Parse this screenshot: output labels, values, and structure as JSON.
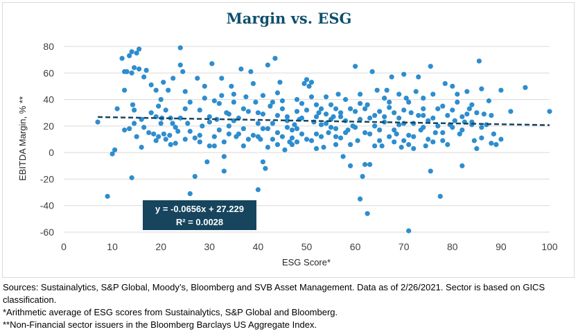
{
  "colors": {
    "title": "#0f4f6b",
    "points": "#2e8dce",
    "trendline": "#16455d",
    "equation_box": "#16455d",
    "grid": "#d9d9d9"
  },
  "notes": {
    "sources": "Sources: Sustainalytics, S&P Global, Moody’s, Bloomberg and SVB Asset Management. Data as of 2/26/2021. Sector is based on GICS classification.",
    "footnote_1": "*Arithmetic average of ESG scores from Sustainalytics, S&P Global and Bloomberg.",
    "footnote_2": "**Non-Financial sector issuers in the Bloomberg Barclays US Aggregate Index."
  },
  "chart_data": {
    "type": "scatter",
    "title": "Margin vs. ESG",
    "xlabel": "ESG Score*",
    "ylabel": "EBITDA Margin, % **",
    "xlim": [
      0,
      100
    ],
    "ylim": [
      -60,
      80
    ],
    "x_ticks": [
      0,
      10,
      20,
      30,
      40,
      50,
      60,
      70,
      80,
      90,
      100
    ],
    "y_ticks": [
      -60,
      -40,
      -20,
      0,
      20,
      40,
      60,
      80
    ],
    "grid": "horizontal",
    "trendline": {
      "type": "linear",
      "slope": -0.0656,
      "intercept": 27.229,
      "x_range": [
        7,
        100
      ],
      "equation": "y = -0.0656x + 27.229",
      "r_squared": "R² = 0.0028"
    },
    "points": [
      [
        7,
        23
      ],
      [
        9,
        -33
      ],
      [
        10,
        -1
      ],
      [
        10.5,
        2
      ],
      [
        11,
        33
      ],
      [
        12,
        71
      ],
      [
        12.5,
        61
      ],
      [
        13,
        61
      ],
      [
        13.5,
        73
      ],
      [
        14,
        76
      ],
      [
        14.5,
        64
      ],
      [
        15,
        75
      ],
      [
        14,
        60
      ],
      [
        14.2,
        36
      ],
      [
        14.5,
        32
      ],
      [
        15.5,
        78
      ],
      [
        14,
        -19
      ],
      [
        12.5,
        47
      ],
      [
        12.5,
        17
      ],
      [
        13.5,
        18
      ],
      [
        14.5,
        22
      ],
      [
        15,
        12
      ],
      [
        15.5,
        63
      ],
      [
        16,
        4
      ],
      [
        16.5,
        19
      ],
      [
        16.5,
        57
      ],
      [
        17,
        62
      ],
      [
        17.5,
        15
      ],
      [
        18,
        51
      ],
      [
        18.5,
        14
      ],
      [
        19,
        47
      ],
      [
        19.5,
        35
      ],
      [
        20,
        22
      ],
      [
        20.5,
        53
      ],
      [
        21,
        32
      ],
      [
        21.5,
        47
      ],
      [
        22,
        26
      ],
      [
        22.5,
        56
      ],
      [
        19,
        27
      ],
      [
        19.5,
        12
      ],
      [
        20.2,
        26
      ],
      [
        20.6,
        14
      ],
      [
        21,
        10
      ],
      [
        21.8,
        13
      ],
      [
        22.4,
        22
      ],
      [
        23,
        19
      ],
      [
        23.5,
        16
      ],
      [
        24,
        79
      ],
      [
        24,
        66
      ],
      [
        24.5,
        61
      ],
      [
        25,
        10
      ],
      [
        25,
        46
      ],
      [
        25.5,
        22
      ],
      [
        26,
        16
      ],
      [
        26,
        -31
      ],
      [
        27,
        -18
      ],
      [
        27.5,
        56
      ],
      [
        28,
        32
      ],
      [
        28,
        13
      ],
      [
        28.5,
        20
      ],
      [
        29,
        50
      ],
      [
        29.5,
        -7
      ],
      [
        30,
        23
      ],
      [
        30,
        5
      ],
      [
        30.5,
        67
      ],
      [
        31,
        39
      ],
      [
        31,
        12
      ],
      [
        31.5,
        25
      ],
      [
        32,
        37
      ],
      [
        32.5,
        43
      ],
      [
        32.5,
        56
      ],
      [
        33,
        -14
      ],
      [
        33,
        -3
      ],
      [
        33.5,
        30
      ],
      [
        34,
        20
      ],
      [
        34,
        14
      ],
      [
        34.5,
        50
      ],
      [
        35,
        38
      ],
      [
        35,
        24
      ],
      [
        35.5,
        12
      ],
      [
        36,
        26
      ],
      [
        36.5,
        63
      ],
      [
        37,
        18
      ],
      [
        37,
        33
      ],
      [
        37.5,
        42
      ],
      [
        38,
        10
      ],
      [
        38.5,
        61
      ],
      [
        39,
        52
      ],
      [
        39.5,
        38
      ],
      [
        40,
        22
      ],
      [
        40,
        -28
      ],
      [
        40.5,
        10
      ],
      [
        41,
        -7
      ],
      [
        41,
        43
      ],
      [
        41.5,
        -12
      ],
      [
        42,
        66
      ],
      [
        42,
        18
      ],
      [
        42.5,
        35
      ],
      [
        43,
        38
      ],
      [
        43.5,
        71
      ],
      [
        44,
        15
      ],
      [
        44,
        45
      ],
      [
        44.5,
        53
      ],
      [
        45,
        39
      ],
      [
        45,
        12
      ],
      [
        45.5,
        2
      ],
      [
        46,
        24
      ],
      [
        46.5,
        8
      ],
      [
        47,
        11
      ],
      [
        47.5,
        21
      ],
      [
        48,
        18
      ],
      [
        48.5,
        25
      ],
      [
        49,
        37
      ],
      [
        49.5,
        52
      ],
      [
        50,
        55
      ],
      [
        50,
        10
      ],
      [
        50.5,
        50
      ],
      [
        51,
        53
      ],
      [
        51.5,
        23
      ],
      [
        52,
        14
      ],
      [
        52.5,
        30
      ],
      [
        53,
        33
      ],
      [
        53.5,
        4
      ],
      [
        54,
        22
      ],
      [
        54.5,
        15
      ],
      [
        55,
        19
      ],
      [
        55.5,
        27
      ],
      [
        56,
        33
      ],
      [
        56.5,
        44
      ],
      [
        57,
        27
      ],
      [
        57.5,
        -3
      ],
      [
        58,
        40
      ],
      [
        58.5,
        17
      ],
      [
        59,
        -10
      ],
      [
        59.5,
        20
      ],
      [
        60,
        65
      ],
      [
        60,
        31
      ],
      [
        60.5,
        9
      ],
      [
        61,
        25
      ],
      [
        61,
        -35
      ],
      [
        61.5,
        -18
      ],
      [
        62,
        -9
      ],
      [
        62.5,
        36
      ],
      [
        62.5,
        -46
      ],
      [
        63,
        -9
      ],
      [
        63.5,
        61
      ],
      [
        64,
        28
      ],
      [
        64.5,
        47
      ],
      [
        65,
        17
      ],
      [
        65.5,
        5
      ],
      [
        66,
        23
      ],
      [
        66.5,
        47
      ],
      [
        67,
        38
      ],
      [
        67.5,
        57
      ],
      [
        68,
        30
      ],
      [
        68.5,
        14
      ],
      [
        69,
        21
      ],
      [
        69.5,
        4
      ],
      [
        70,
        59
      ],
      [
        70,
        22
      ],
      [
        70.5,
        41
      ],
      [
        71,
        13
      ],
      [
        71,
        -59
      ],
      [
        71.5,
        30
      ],
      [
        72,
        22
      ],
      [
        72.5,
        46
      ],
      [
        73,
        57
      ],
      [
        73.5,
        17
      ],
      [
        74,
        33
      ],
      [
        74.5,
        5
      ],
      [
        75,
        24
      ],
      [
        75.5,
        65
      ],
      [
        75.5,
        -14
      ],
      [
        76,
        44
      ],
      [
        76.5,
        15
      ],
      [
        77,
        33
      ],
      [
        77.5,
        -33
      ],
      [
        78,
        35
      ],
      [
        78.5,
        52
      ],
      [
        79,
        6
      ],
      [
        79.5,
        21
      ],
      [
        80,
        50
      ],
      [
        80.5,
        24
      ],
      [
        81,
        38
      ],
      [
        81.5,
        14
      ],
      [
        82,
        -10
      ],
      [
        82.5,
        23
      ],
      [
        83,
        46
      ],
      [
        83.5,
        33
      ],
      [
        84,
        21
      ],
      [
        84.5,
        9
      ],
      [
        85,
        30
      ],
      [
        85.5,
        69
      ],
      [
        86,
        48
      ],
      [
        86.5,
        29
      ],
      [
        87,
        21
      ],
      [
        87.5,
        39
      ],
      [
        88,
        28
      ],
      [
        88.5,
        14
      ],
      [
        89,
        6
      ],
      [
        90,
        47
      ],
      [
        90,
        10
      ],
      [
        92,
        31
      ],
      [
        95,
        49
      ],
      [
        100,
        31
      ],
      [
        41,
        18
      ],
      [
        43,
        22
      ],
      [
        46,
        27
      ],
      [
        48,
        31
      ],
      [
        52,
        36
      ],
      [
        54,
        29
      ],
      [
        56,
        18
      ],
      [
        58,
        24
      ],
      [
        62,
        15
      ],
      [
        64,
        20
      ],
      [
        66,
        27
      ],
      [
        68,
        8
      ],
      [
        72,
        12
      ],
      [
        74,
        19
      ],
      [
        76,
        26
      ],
      [
        78,
        9
      ],
      [
        80,
        32
      ],
      [
        82,
        17
      ],
      [
        84,
        23
      ],
      [
        86,
        11
      ],
      [
        47,
        6
      ],
      [
        49,
        14
      ],
      [
        51,
        42
      ],
      [
        53,
        21
      ],
      [
        55,
        36
      ],
      [
        57,
        11
      ],
      [
        59,
        33
      ],
      [
        61,
        44
      ],
      [
        63,
        14
      ],
      [
        65,
        31
      ],
      [
        67,
        12
      ],
      [
        69,
        44
      ],
      [
        71,
        6
      ],
      [
        73,
        28
      ],
      [
        75,
        10
      ],
      [
        77,
        20
      ],
      [
        79,
        28
      ],
      [
        81,
        44
      ],
      [
        83,
        29
      ],
      [
        85,
        3
      ],
      [
        33,
        8
      ],
      [
        35,
        44
      ],
      [
        37,
        5
      ],
      [
        39,
        13
      ],
      [
        41,
        29
      ],
      [
        43,
        10
      ],
      [
        45,
        33
      ],
      [
        47,
        17
      ],
      [
        49,
        26
      ],
      [
        51,
        9
      ],
      [
        53,
        12
      ],
      [
        55,
        25
      ],
      [
        57,
        30
      ],
      [
        59,
        6
      ],
      [
        61,
        37
      ],
      [
        63,
        26
      ],
      [
        65,
        9
      ],
      [
        67,
        34
      ],
      [
        69,
        26
      ],
      [
        71,
        38
      ],
      [
        24,
        26
      ],
      [
        26,
        38
      ],
      [
        28,
        8
      ],
      [
        30,
        27
      ],
      [
        32,
        17
      ],
      [
        34,
        29
      ],
      [
        36,
        14
      ],
      [
        38,
        31
      ],
      [
        40,
        12
      ],
      [
        42,
        4
      ],
      [
        44,
        28
      ],
      [
        46,
        19
      ],
      [
        48,
        40
      ],
      [
        50,
        32
      ],
      [
        52,
        3
      ],
      [
        54,
        42
      ],
      [
        56,
        6
      ],
      [
        58,
        15
      ],
      [
        60,
        19
      ],
      [
        62,
        33
      ],
      [
        64,
        5
      ],
      [
        66,
        41
      ],
      [
        68,
        17
      ],
      [
        70,
        32
      ],
      [
        72,
        3
      ],
      [
        74,
        41
      ],
      [
        76,
        8
      ],
      [
        78,
        15
      ],
      [
        80,
        19
      ],
      [
        82,
        27
      ],
      [
        84,
        36
      ],
      [
        86,
        19
      ],
      [
        88,
        7
      ],
      [
        70,
        9
      ],
      [
        74,
        28
      ],
      [
        56,
        12
      ],
      [
        52,
        27
      ],
      [
        48,
        8
      ],
      [
        44,
        6
      ],
      [
        40,
        30
      ],
      [
        20,
        40
      ],
      [
        22,
        6
      ],
      [
        18,
        30
      ],
      [
        16,
        25
      ],
      [
        25,
        33
      ],
      [
        27,
        11
      ],
      [
        29,
        41
      ],
      [
        31,
        5
      ],
      [
        23,
        7
      ],
      [
        19,
        9
      ]
    ]
  }
}
